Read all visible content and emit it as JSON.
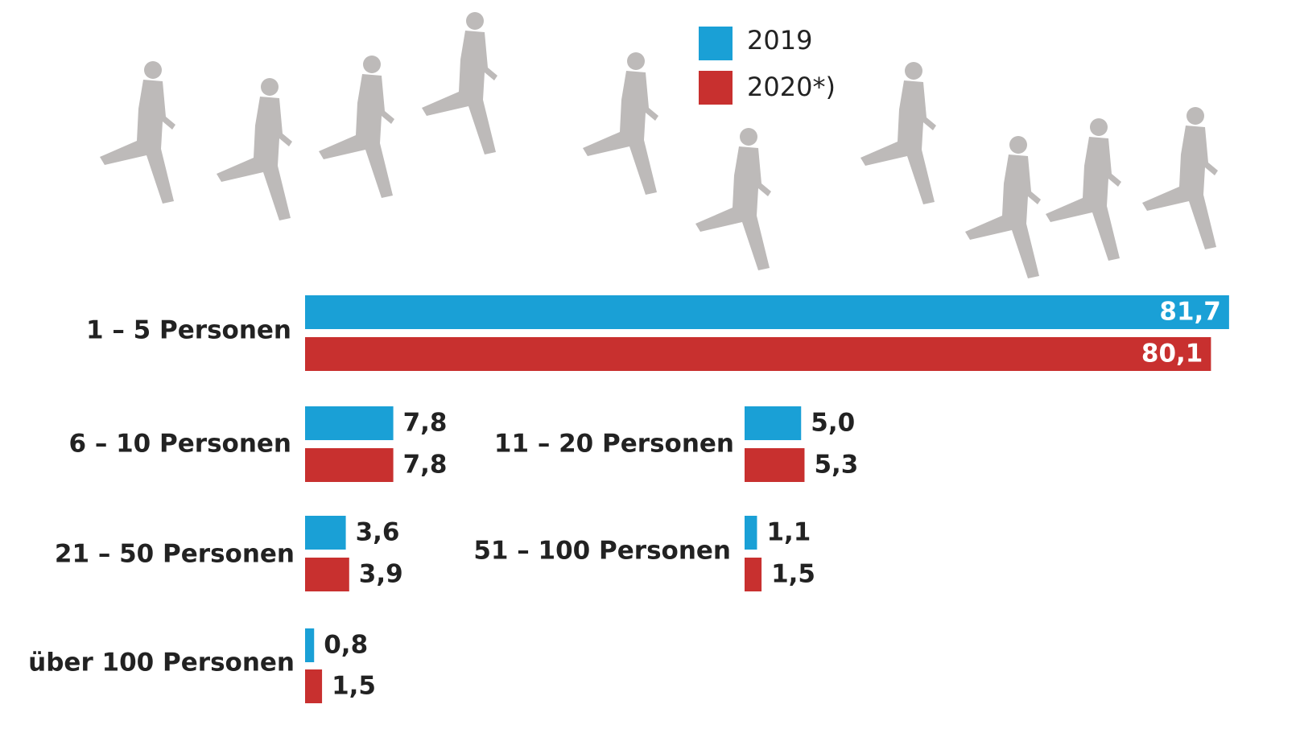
{
  "chart_data": {
    "type": "bar",
    "orientation": "horizontal",
    "legend": "top",
    "categories": [
      "1 – 5 Personen",
      "6 – 10 Personen",
      "11 – 20 Personen",
      "21 – 50 Personen",
      "51 – 100 Personen",
      "über 100 Personen"
    ],
    "series": [
      {
        "name": "2019",
        "color": "#1aa0d6",
        "values": [
          81.7,
          7.8,
          5.0,
          3.6,
          1.1,
          0.8
        ],
        "value_labels": [
          "81,7",
          "7,8",
          "5,0",
          "3,6",
          "1,1",
          "0,8"
        ]
      },
      {
        "name": "2020*)",
        "color": "#c8302f",
        "values": [
          80.1,
          7.8,
          5.3,
          3.9,
          1.5,
          1.5
        ],
        "value_labels": [
          "80,1",
          "7,8",
          "5,3",
          "3,9",
          "1,5",
          "1,5"
        ]
      }
    ]
  }
}
